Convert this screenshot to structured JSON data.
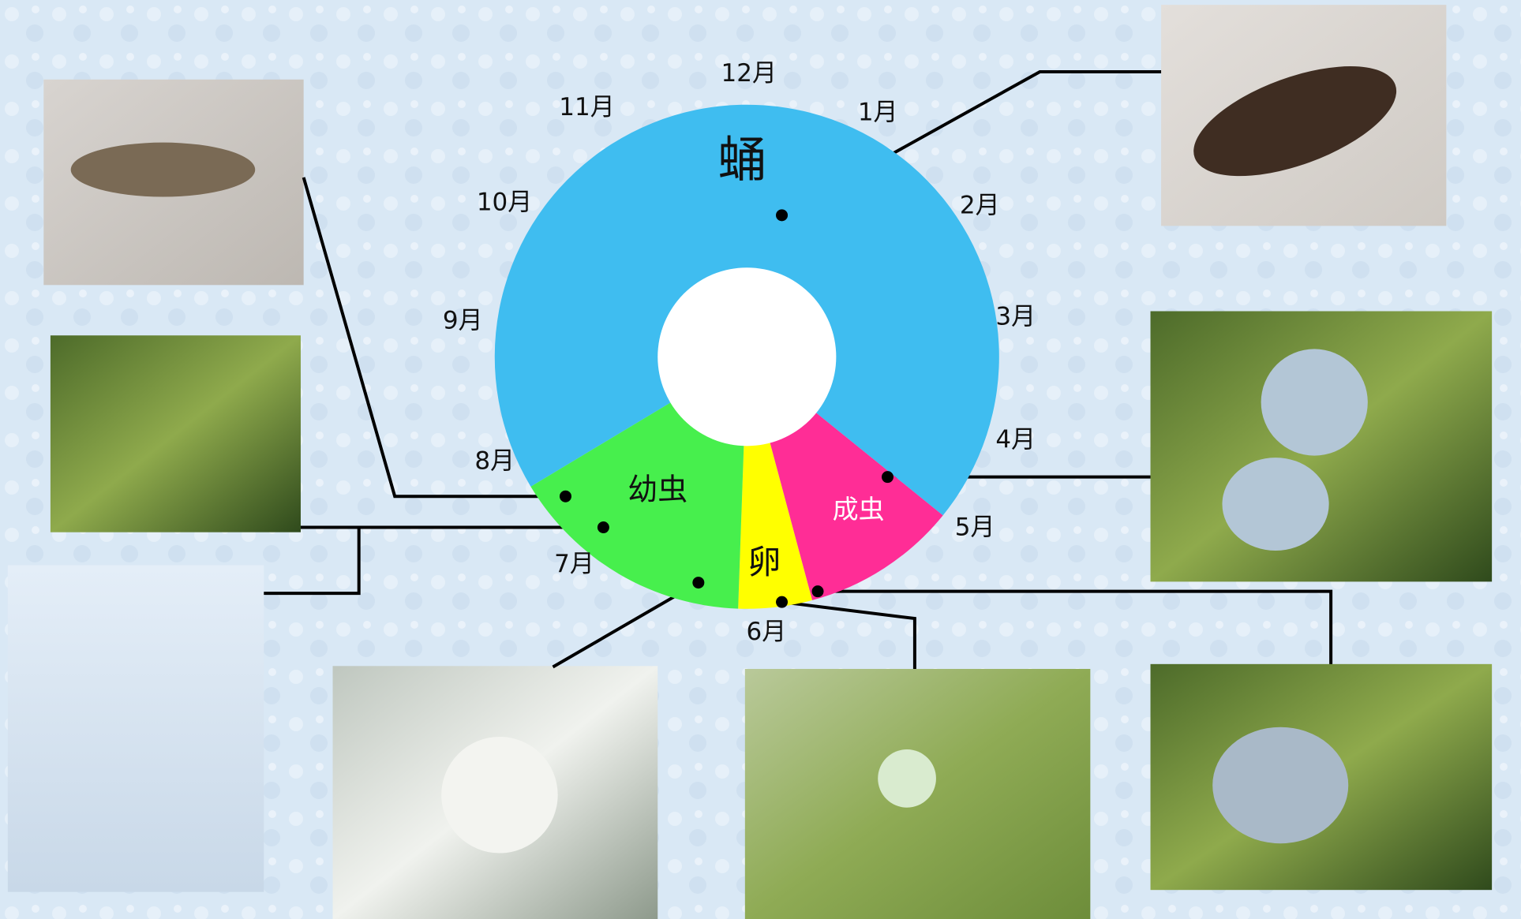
{
  "months": [
    "1月",
    "2月",
    "3月",
    "4月",
    "5月",
    "6月",
    "7月",
    "8月",
    "9月",
    "10月",
    "11月",
    "12月"
  ],
  "stages": {
    "pupa": "蛹",
    "larva": "幼虫",
    "egg": "卵",
    "adult": "成虫"
  }
}
